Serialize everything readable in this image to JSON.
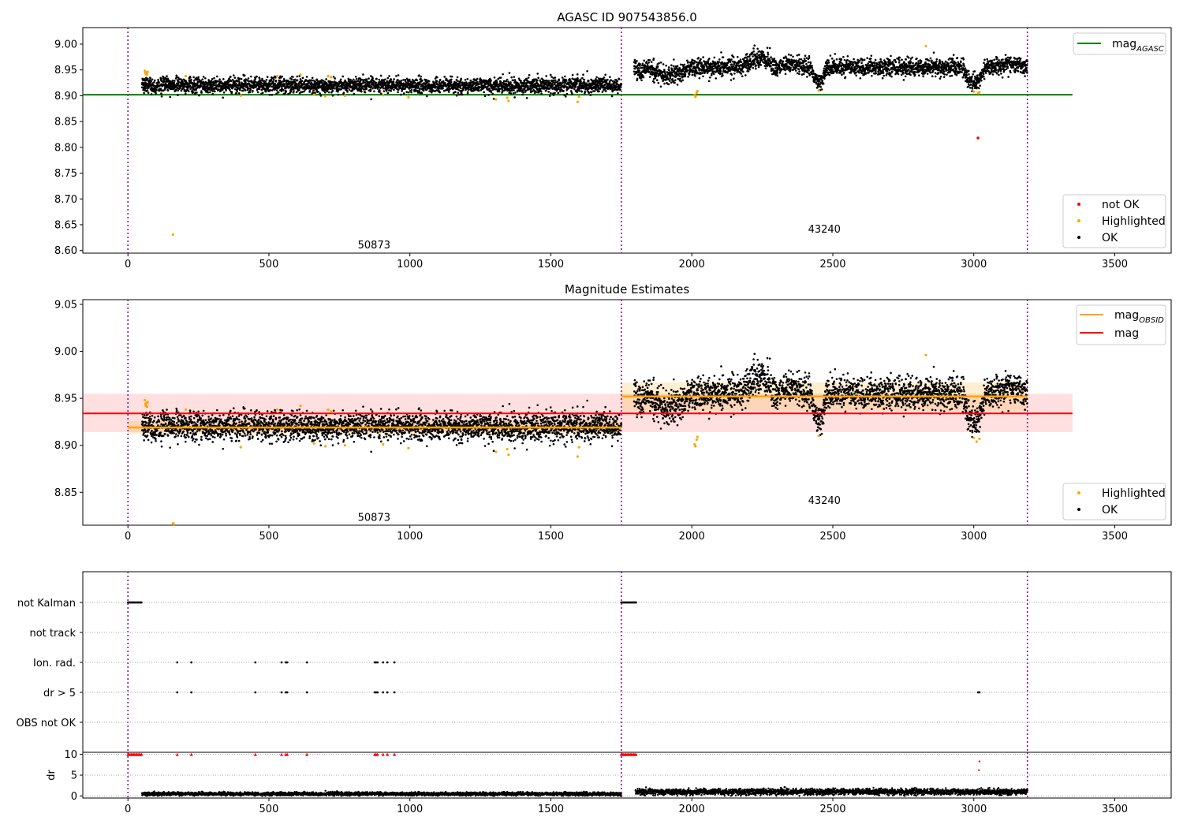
{
  "chart_data": [
    {
      "type": "scatter",
      "panel": "mag_agasc",
      "title": "AGASC ID 907543856.0",
      "xlim": [
        -160,
        3700
      ],
      "ylim": [
        8.595,
        9.032
      ],
      "xticks": [
        0,
        500,
        1000,
        1500,
        2000,
        2500,
        3000,
        3500
      ],
      "yticks": [
        8.6,
        8.65,
        8.7,
        8.75,
        8.8,
        8.85,
        8.9,
        8.95,
        9.0
      ],
      "ytick_decimals": 2,
      "obs_boundaries": [
        0,
        1750,
        3190
      ],
      "obs_labels": [
        {
          "text": "50873",
          "x": 873,
          "y": 8.612
        },
        {
          "text": "43240",
          "x": 2470,
          "y": 8.642
        }
      ],
      "hlines": [
        {
          "name": "mag_AGASC",
          "y": 8.902,
          "x0": -160,
          "x1": 3350,
          "color": "#008000"
        }
      ],
      "series_model": [
        {
          "x0": 50,
          "x1": 1750,
          "mean": 8.92,
          "sd": 0.0075,
          "dips": []
        },
        {
          "x0": 1795,
          "x1": 3190,
          "mean": 8.955,
          "sd": 0.0085,
          "dips": [
            [
              1795,
              1840,
              -0.01
            ],
            [
              1840,
              2000,
              -0.015
            ],
            [
              2180,
              2300,
              0.018
            ],
            [
              2300,
              2400,
              0.008
            ],
            [
              2420,
              2480,
              -0.025
            ],
            [
              2960,
              3040,
              -0.03
            ],
            [
              3070,
              3190,
              0.008
            ]
          ]
        }
      ],
      "highlighted": [
        [
          60,
          8.948
        ],
        [
          62,
          8.944
        ],
        [
          64,
          8.942
        ],
        [
          66,
          8.945
        ],
        [
          68,
          8.941
        ],
        [
          70,
          8.946
        ],
        [
          160,
          8.631
        ],
        [
          205,
          8.938
        ],
        [
          400,
          8.9
        ],
        [
          530,
          8.938
        ],
        [
          612,
          8.941
        ],
        [
          660,
          8.902
        ],
        [
          700,
          8.899
        ],
        [
          710,
          8.938
        ],
        [
          720,
          8.936
        ],
        [
          770,
          8.9
        ],
        [
          905,
          8.901
        ],
        [
          995,
          8.897
        ],
        [
          1305,
          8.893
        ],
        [
          1345,
          8.896
        ],
        [
          1350,
          8.89
        ],
        [
          1595,
          8.888
        ],
        [
          1600,
          8.898
        ],
        [
          2010,
          8.901
        ],
        [
          2013,
          8.898
        ],
        [
          2017,
          8.906
        ],
        [
          2020,
          8.909
        ],
        [
          2450,
          8.91
        ],
        [
          2830,
          8.996
        ],
        [
          3000,
          8.908
        ],
        [
          3015,
          8.905
        ],
        [
          3020,
          8.907
        ]
      ],
      "not_ok": [
        [
          3015,
          8.818
        ]
      ],
      "legend_top": [
        {
          "label": "mag",
          "subscript": "AGASC",
          "color": "#008000"
        }
      ],
      "legend_bottom": [
        {
          "label": "not OK",
          "color": "#ff0000"
        },
        {
          "label": "Highlighted",
          "color": "#ffa500"
        },
        {
          "label": "OK",
          "color": "#000000"
        }
      ]
    },
    {
      "type": "scatter",
      "panel": "mag_estimates",
      "title": "Magnitude Estimates",
      "xlim": [
        -160,
        3700
      ],
      "ylim": [
        8.815,
        9.055
      ],
      "xticks": [
        0,
        500,
        1000,
        1500,
        2000,
        2500,
        3000,
        3500
      ],
      "yticks": [
        8.85,
        8.9,
        8.95,
        9.0,
        9.05
      ],
      "ytick_decimals": 2,
      "obs_boundaries": [
        0,
        1750,
        3190
      ],
      "obs_labels": [
        {
          "text": "50873",
          "x": 873,
          "y": 8.824
        },
        {
          "text": "43240",
          "x": 2470,
          "y": 8.842
        }
      ],
      "mag": {
        "y": 8.934,
        "band": [
          8.914,
          8.955
        ],
        "x0": -160,
        "x1": 3350,
        "color": "#ff0000"
      },
      "mag_obsid": [
        {
          "x0": 0,
          "x1": 1750,
          "y": 8.919,
          "band": [
            8.912,
            8.926
          ]
        },
        {
          "x0": 1750,
          "x1": 3190,
          "y": 8.952,
          "band": [
            8.937,
            8.967
          ]
        }
      ],
      "highlighted": [
        [
          60,
          8.948
        ],
        [
          62,
          8.944
        ],
        [
          64,
          8.942
        ],
        [
          66,
          8.945
        ],
        [
          68,
          8.941
        ],
        [
          70,
          8.946
        ],
        [
          160,
          8.817
        ],
        [
          163,
          8.816
        ],
        [
          205,
          8.938
        ],
        [
          400,
          8.898
        ],
        [
          530,
          8.938
        ],
        [
          612,
          8.942
        ],
        [
          660,
          8.902
        ],
        [
          700,
          8.899
        ],
        [
          710,
          8.938
        ],
        [
          720,
          8.936
        ],
        [
          770,
          8.9
        ],
        [
          905,
          8.901
        ],
        [
          995,
          8.897
        ],
        [
          1305,
          8.893
        ],
        [
          1345,
          8.896
        ],
        [
          1350,
          8.89
        ],
        [
          1595,
          8.888
        ],
        [
          1600,
          8.898
        ],
        [
          2010,
          8.901
        ],
        [
          2013,
          8.899
        ],
        [
          2017,
          8.906
        ],
        [
          2020,
          8.909
        ],
        [
          2450,
          8.91
        ],
        [
          2830,
          8.996
        ],
        [
          3000,
          8.908
        ],
        [
          3010,
          8.904
        ],
        [
          3020,
          8.907
        ]
      ],
      "legend_top": [
        {
          "label": "mag",
          "subscript": "OBSID",
          "color": "#ffa500"
        },
        {
          "label": "mag",
          "subscript": "",
          "color": "#ff0000"
        }
      ],
      "legend_bottom": [
        {
          "label": "Highlighted",
          "color": "#ffa500"
        },
        {
          "label": "OK",
          "color": "#000000"
        }
      ]
    },
    {
      "type": "scatter",
      "panel": "flags",
      "title": "",
      "xlim": [
        -160,
        3700
      ],
      "categories": [
        "not Kalman",
        "not track",
        "Ion. rad.",
        "dr > 5",
        "OBS not OK"
      ],
      "flags": {
        "not Kalman": [
          [
            0,
            50
          ],
          [
            1750,
            1805
          ]
        ],
        "not track": [],
        "Ion. rad.": [
          [
            175
          ],
          [
            225
          ],
          [
            452
          ],
          [
            545
          ],
          [
            560
          ],
          [
            565
          ],
          [
            635
          ],
          [
            875
          ],
          [
            880
          ],
          [
            885
          ],
          [
            905
          ],
          [
            920
          ],
          [
            945
          ]
        ],
        "dr > 5": [
          [
            175
          ],
          [
            225
          ],
          [
            452
          ],
          [
            545
          ],
          [
            560
          ],
          [
            565
          ],
          [
            635
          ],
          [
            875
          ],
          [
            880
          ],
          [
            885
          ],
          [
            905
          ],
          [
            920
          ],
          [
            945
          ],
          [
            3015
          ],
          [
            3020
          ]
        ],
        "OBS not OK": []
      }
    },
    {
      "type": "scatter",
      "panel": "dr",
      "title": "",
      "ylabel": "dr",
      "xlim": [
        -160,
        3700
      ],
      "ylim": [
        -0.5,
        10.5
      ],
      "xticks": [
        0,
        500,
        1000,
        1500,
        2000,
        2500,
        3000,
        3500
      ],
      "yticks": [
        0,
        5,
        10
      ],
      "obs_boundaries": [
        0,
        1750,
        3190
      ],
      "series_model": [
        {
          "x0": 50,
          "x1": 1750,
          "mean": 0.5,
          "sd": 0.2
        },
        {
          "x0": 1800,
          "x1": 3190,
          "mean": 1.0,
          "sd": 0.35
        }
      ],
      "capped_red": [
        [
          0,
          50
        ],
        [
          175
        ],
        [
          225
        ],
        [
          452
        ],
        [
          545
        ],
        [
          560
        ],
        [
          565
        ],
        [
          635
        ],
        [
          875
        ],
        [
          880
        ],
        [
          885
        ],
        [
          905
        ],
        [
          920
        ],
        [
          945
        ],
        [
          1750,
          1805
        ]
      ],
      "red_points": [
        [
          3020,
          8.3
        ],
        [
          3018,
          6.2
        ]
      ]
    }
  ]
}
